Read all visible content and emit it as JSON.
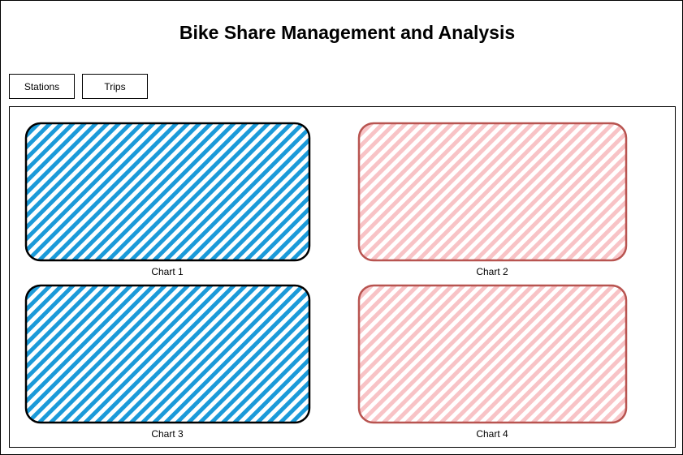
{
  "header": {
    "title": "Bike Share Management and Analysis"
  },
  "tabs": [
    {
      "label": "Stations"
    },
    {
      "label": "Trips"
    }
  ],
  "charts": [
    {
      "label": "Chart 1",
      "style": "blue-hatch"
    },
    {
      "label": "Chart 2",
      "style": "pink-hatch"
    },
    {
      "label": "Chart 3",
      "style": "blue-hatch"
    },
    {
      "label": "Chart 4",
      "style": "pink-hatch"
    }
  ],
  "colors": {
    "blue_fill": "#1b9ad9",
    "blue_stroke": "#000000",
    "pink_fill": "#f8c3c6",
    "pink_stroke": "#b85450"
  }
}
